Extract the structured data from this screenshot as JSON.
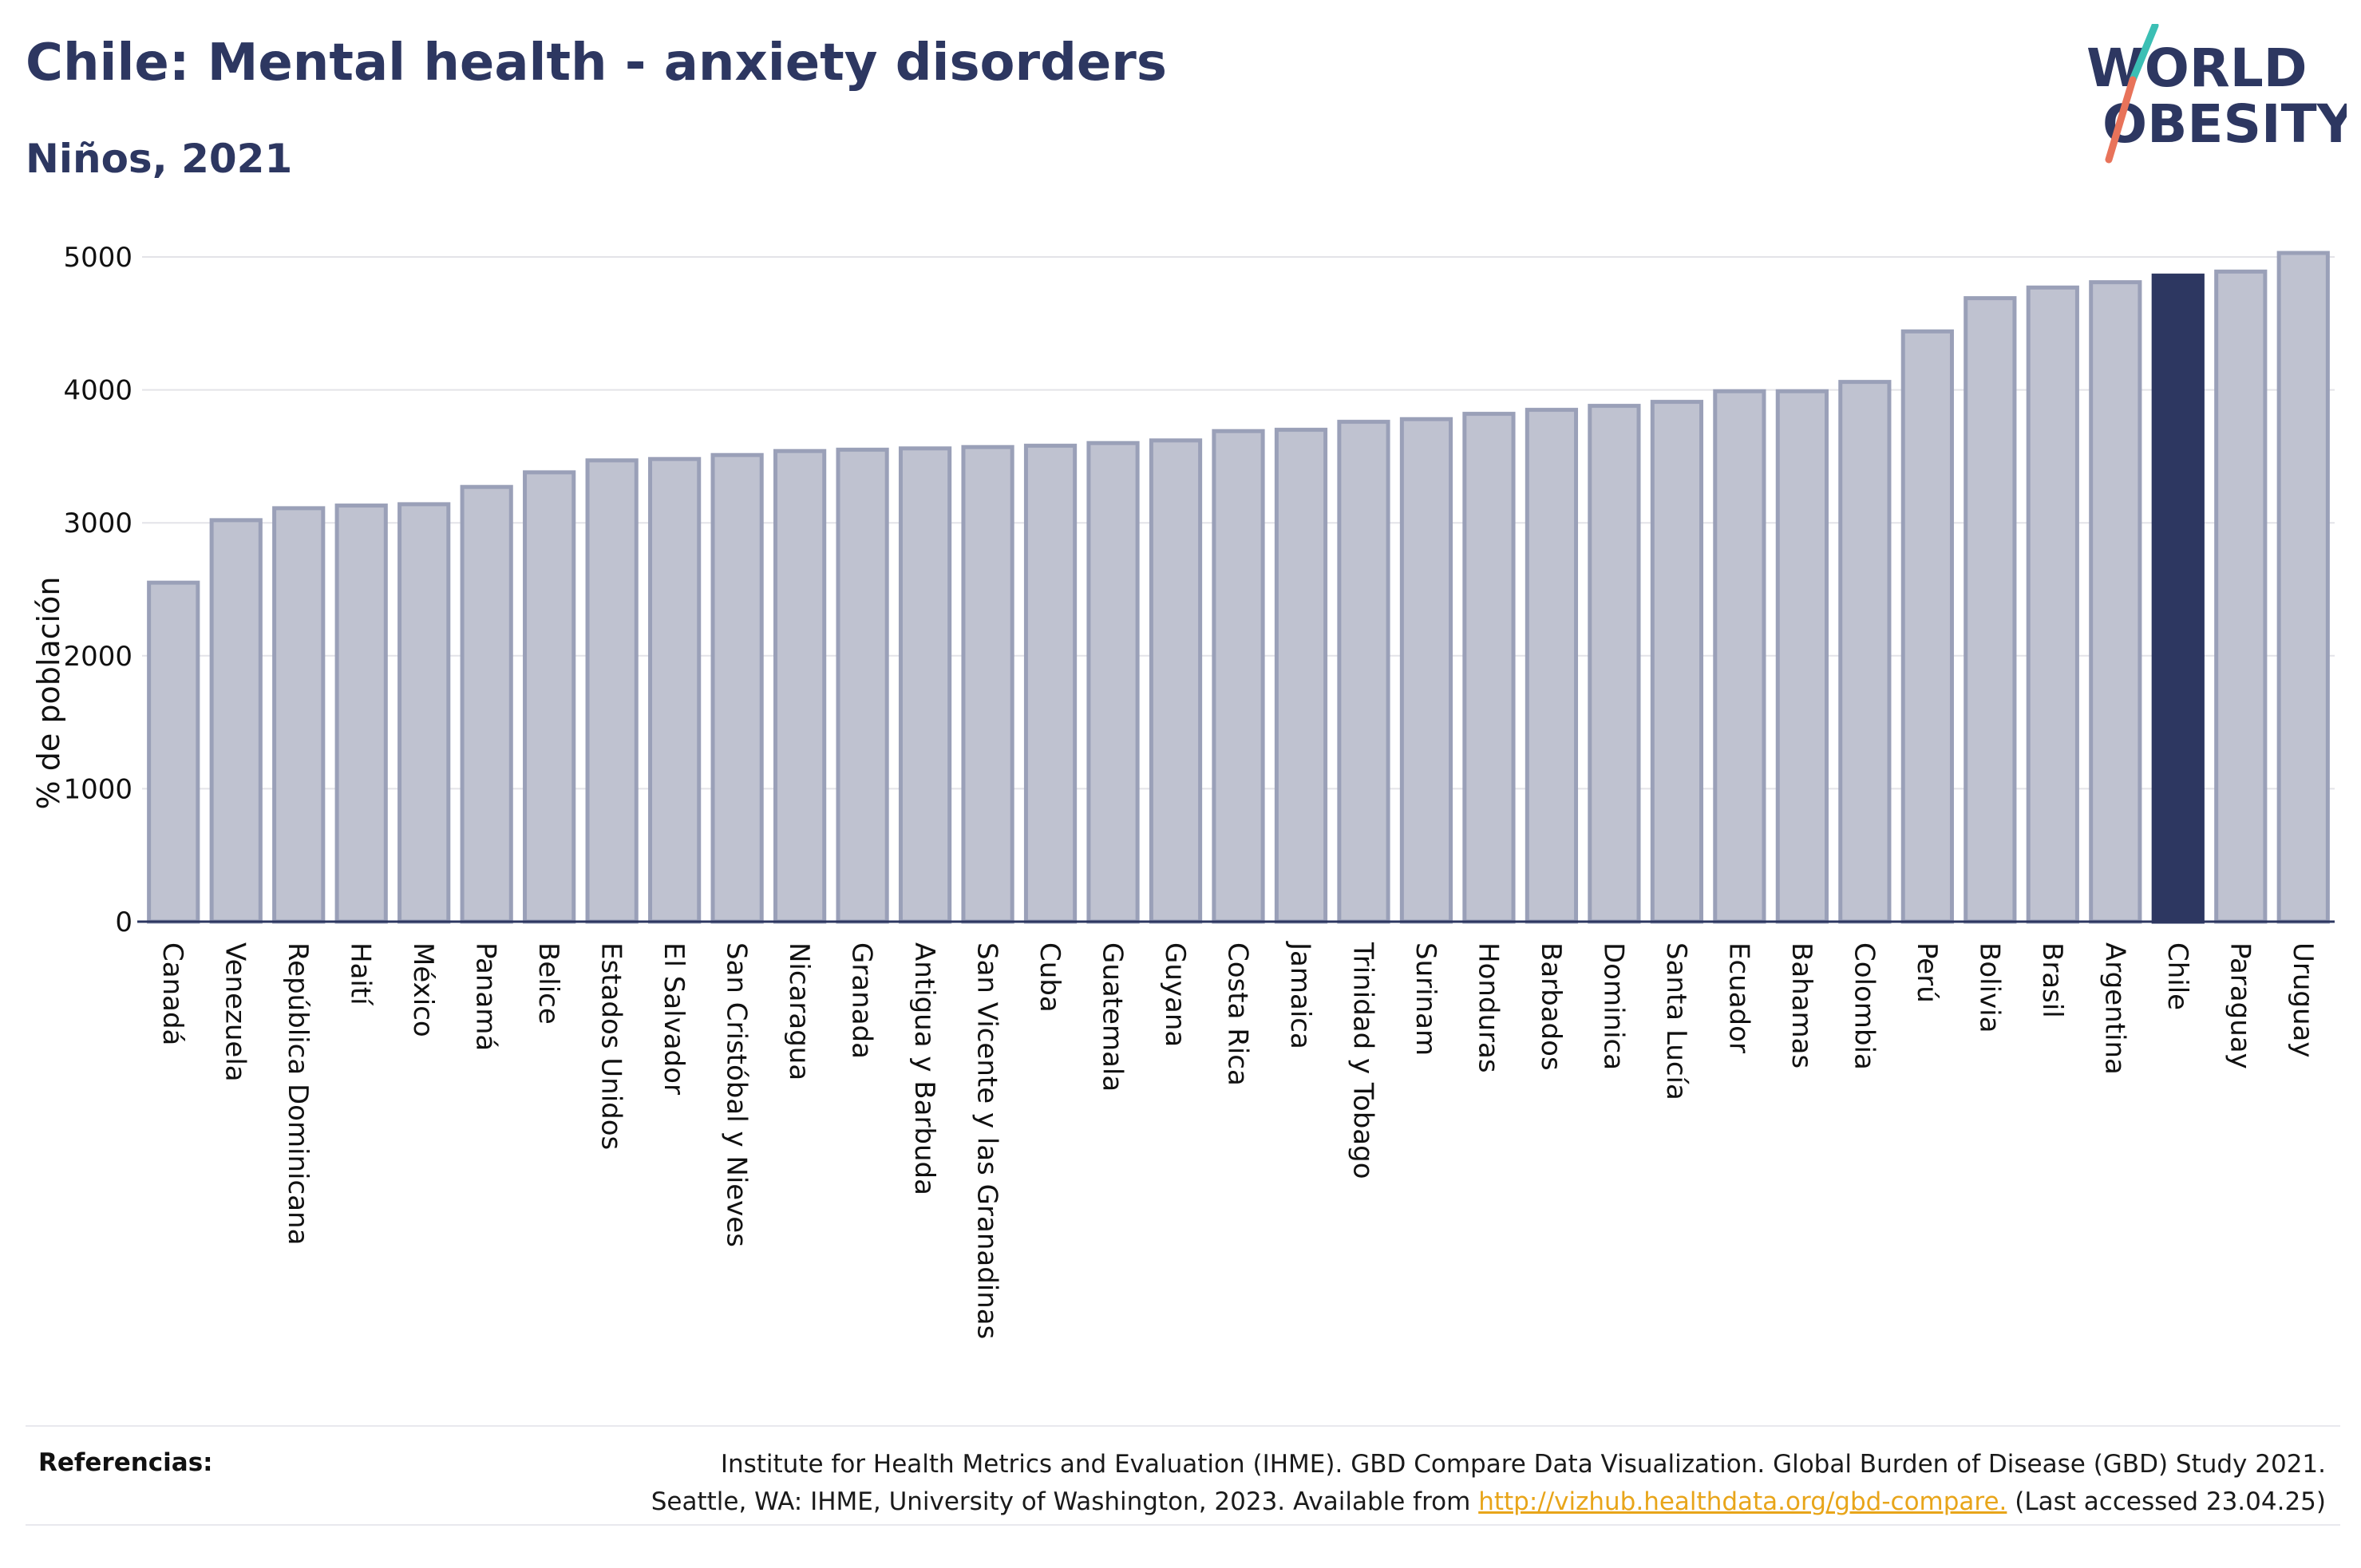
{
  "title": "Chile: Mental health - anxiety disorders",
  "subtitle": "Niños, 2021",
  "logo": {
    "line1": "WORLD",
    "line2": "OBESITY",
    "accent_teal": "#3bbfb4",
    "accent_coral": "#e8735a",
    "color": "#2d3761"
  },
  "chart_data": {
    "type": "bar",
    "ylabel": "% de población",
    "xlabel": "",
    "ylim": [
      0,
      5000
    ],
    "yticks": [
      0,
      1000,
      2000,
      3000,
      4000,
      5000
    ],
    "grid": true,
    "highlight": "Chile",
    "colors": {
      "bar": "#bfc2d0",
      "bar_edge": "#9aa0b8",
      "highlight": "#2d3761"
    },
    "categories": [
      "Canadá",
      "Venezuela",
      "República Dominicana",
      "Haití",
      "México",
      "Panamá",
      "Belice",
      "Estados Unidos",
      "El Salvador",
      "San Cristóbal y Nieves",
      "Nicaragua",
      "Granada",
      "Antigua y Barbuda",
      "San Vicente y las Granadinas",
      "Cuba",
      "Guatemala",
      "Guyana",
      "Costa Rica",
      "Jamaica",
      "Trinidad y Tobago",
      "Surinam",
      "Honduras",
      "Barbados",
      "Dominica",
      "Santa Lucía",
      "Ecuador",
      "Bahamas",
      "Colombia",
      "Perú",
      "Bolivia",
      "Brasil",
      "Argentina",
      "Chile",
      "Paraguay",
      "Uruguay"
    ],
    "values": [
      2550,
      3020,
      3110,
      3130,
      3140,
      3270,
      3380,
      3470,
      3480,
      3510,
      3540,
      3550,
      3560,
      3570,
      3580,
      3600,
      3620,
      3690,
      3700,
      3760,
      3780,
      3820,
      3850,
      3880,
      3910,
      3990,
      3990,
      4060,
      4440,
      4690,
      4770,
      4810,
      4860,
      4890,
      5030
    ]
  },
  "references": {
    "label": "Referencias:",
    "line1": "Institute for Health Metrics and Evaluation (IHME). GBD Compare Data Visualization. Global Burden of Disease (GBD) Study 2021.",
    "line2_prefix": "Seattle, WA: IHME, University of Washington, 2023. Available from ",
    "link": "http://vizhub.healthdata.org/gbd-compare.",
    "line2_suffix": " (Last accessed 23.04.25)"
  }
}
